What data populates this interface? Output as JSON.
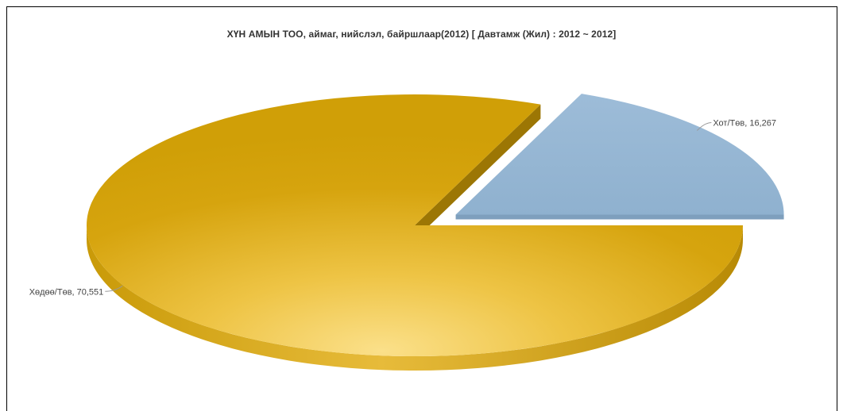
{
  "chart_data": {
    "type": "pie",
    "title": "ХҮН АМЫН ТОО, аймаг, нийслэл, байршлаар(2012)  [ Давтамж (Жил) : 2012 ~ 2012]",
    "slices": [
      {
        "name": "Хот/Төв",
        "value": 16267,
        "label": "Хот/Төв, 16,267",
        "color": "#96b6d3",
        "exploded": true
      },
      {
        "name": "Хөдөө/Төв",
        "value": 70551,
        "label": "Хөдөө/Төв, 70,551",
        "color": "#d4a20a",
        "exploded": false
      }
    ],
    "legend": "none"
  }
}
